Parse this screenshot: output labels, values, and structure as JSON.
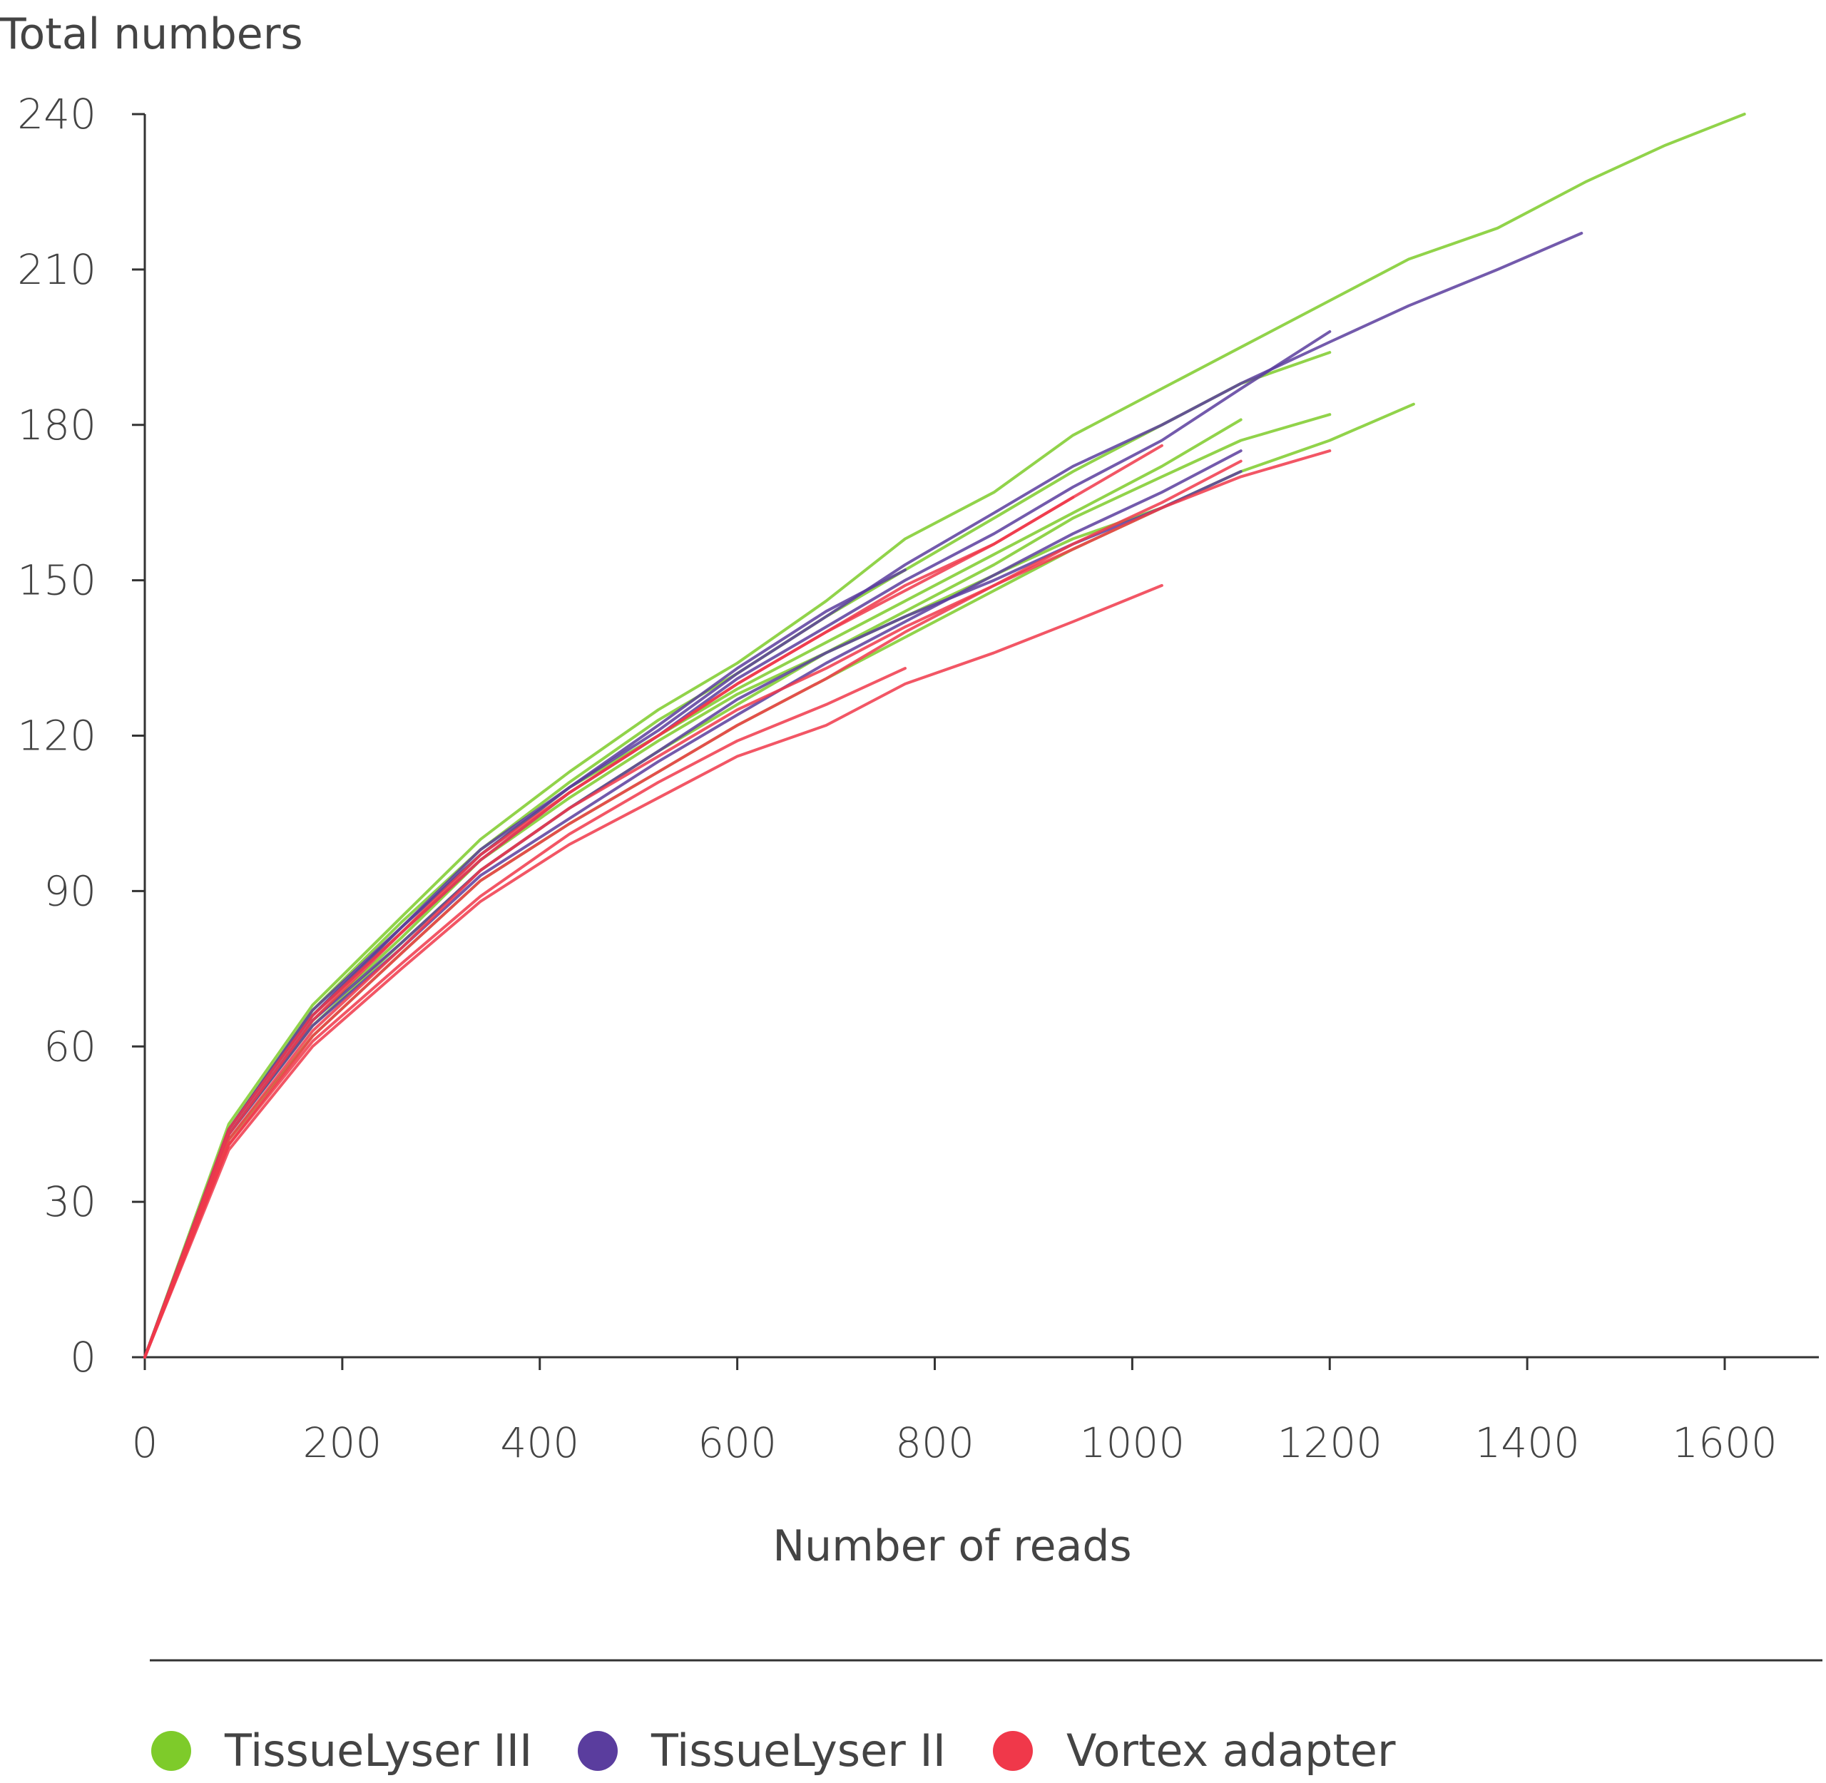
{
  "chart_data": {
    "type": "line",
    "title": "",
    "ylabel": "Total numbers",
    "xlabel": "Number of reads",
    "xlim": [
      0,
      1700
    ],
    "ylim": [
      0,
      240
    ],
    "x_ticks": [
      0,
      200,
      400,
      600,
      800,
      1000,
      1200,
      1400,
      1600
    ],
    "y_ticks": [
      0,
      30,
      60,
      90,
      120,
      150,
      180,
      210,
      240
    ],
    "grid": false,
    "legend_position": "bottom",
    "legend": [
      {
        "label": "TissueLyser III",
        "color": "#7ecb2a"
      },
      {
        "label": "TissueLyser II",
        "color": "#5a3d9e"
      },
      {
        "label": "Vortex adapter",
        "color": "#f0384a"
      }
    ],
    "series": [
      {
        "group": "TissueLyser III",
        "color": "#7ecb2a",
        "points": [
          [
            0,
            0
          ],
          [
            85,
            45
          ],
          [
            170,
            68
          ],
          [
            260,
            85
          ],
          [
            340,
            100
          ],
          [
            430,
            113
          ],
          [
            520,
            125
          ],
          [
            600,
            134
          ],
          [
            690,
            146
          ],
          [
            770,
            158
          ],
          [
            860,
            167
          ],
          [
            940,
            178
          ],
          [
            1030,
            187
          ],
          [
            1110,
            195
          ],
          [
            1200,
            204
          ],
          [
            1280,
            212
          ],
          [
            1370,
            218
          ],
          [
            1460,
            227
          ],
          [
            1540,
            234
          ],
          [
            1620,
            240
          ]
        ]
      },
      {
        "group": "TissueLyser III",
        "color": "#7ecb2a",
        "points": [
          [
            0,
            0
          ],
          [
            85,
            44
          ],
          [
            170,
            67
          ],
          [
            260,
            84
          ],
          [
            340,
            98
          ],
          [
            430,
            111
          ],
          [
            520,
            123
          ],
          [
            600,
            132
          ],
          [
            690,
            143
          ],
          [
            770,
            152
          ],
          [
            860,
            162
          ],
          [
            940,
            171
          ],
          [
            1030,
            180
          ],
          [
            1110,
            188
          ],
          [
            1200,
            194
          ]
        ]
      },
      {
        "group": "TissueLyser III",
        "color": "#7ecb2a",
        "points": [
          [
            0,
            0
          ],
          [
            85,
            43
          ],
          [
            170,
            64
          ],
          [
            260,
            80
          ],
          [
            340,
            94
          ],
          [
            430,
            106
          ],
          [
            520,
            117
          ],
          [
            600,
            126
          ],
          [
            690,
            136
          ],
          [
            770,
            144
          ],
          [
            860,
            153
          ],
          [
            940,
            162
          ],
          [
            1030,
            170
          ],
          [
            1110,
            177
          ],
          [
            1200,
            182
          ]
        ]
      },
      {
        "group": "TissueLyser III",
        "color": "#7ecb2a",
        "points": [
          [
            0,
            0
          ],
          [
            85,
            42
          ],
          [
            170,
            62
          ],
          [
            260,
            78
          ],
          [
            340,
            92
          ],
          [
            430,
            103
          ],
          [
            520,
            113
          ],
          [
            600,
            122
          ],
          [
            690,
            131
          ],
          [
            770,
            139
          ],
          [
            860,
            148
          ],
          [
            940,
            156
          ],
          [
            1030,
            164
          ],
          [
            1110,
            171
          ],
          [
            1200,
            177
          ],
          [
            1285,
            184
          ]
        ]
      },
      {
        "group": "TissueLyser III",
        "color": "#7ecb2a",
        "points": [
          [
            0,
            0
          ],
          [
            85,
            44
          ],
          [
            170,
            66
          ],
          [
            260,
            83
          ],
          [
            340,
            97
          ],
          [
            430,
            110
          ],
          [
            520,
            120
          ],
          [
            600,
            129
          ],
          [
            690,
            138
          ],
          [
            770,
            146
          ],
          [
            860,
            155
          ],
          [
            940,
            163
          ],
          [
            1030,
            172
          ],
          [
            1110,
            181
          ]
        ]
      },
      {
        "group": "TissueLyser III",
        "color": "#7ecb2a",
        "points": [
          [
            0,
            0
          ],
          [
            85,
            43
          ],
          [
            170,
            65
          ],
          [
            260,
            81
          ],
          [
            340,
            96
          ],
          [
            430,
            108
          ],
          [
            520,
            119
          ],
          [
            600,
            128
          ],
          [
            690,
            136
          ],
          [
            770,
            143
          ],
          [
            860,
            151
          ],
          [
            940,
            158
          ],
          [
            1030,
            164
          ]
        ]
      },
      {
        "group": "TissueLyser II",
        "color": "#5a3d9e",
        "points": [
          [
            0,
            0
          ],
          [
            85,
            44
          ],
          [
            170,
            67
          ],
          [
            260,
            83
          ],
          [
            340,
            97
          ],
          [
            430,
            110
          ],
          [
            520,
            121
          ],
          [
            600,
            132
          ],
          [
            690,
            143
          ],
          [
            770,
            153
          ],
          [
            860,
            163
          ],
          [
            940,
            172
          ],
          [
            1030,
            180
          ],
          [
            1110,
            188
          ],
          [
            1200,
            196
          ],
          [
            1280,
            203
          ],
          [
            1370,
            210
          ],
          [
            1455,
            217
          ]
        ]
      },
      {
        "group": "TissueLyser II",
        "color": "#5a3d9e",
        "points": [
          [
            0,
            0
          ],
          [
            85,
            44
          ],
          [
            170,
            66
          ],
          [
            260,
            82
          ],
          [
            340,
            96
          ],
          [
            430,
            109
          ],
          [
            520,
            120
          ],
          [
            600,
            131
          ],
          [
            690,
            141
          ],
          [
            770,
            150
          ],
          [
            860,
            159
          ],
          [
            940,
            168
          ],
          [
            1030,
            177
          ],
          [
            1110,
            187
          ],
          [
            1200,
            198
          ]
        ]
      },
      {
        "group": "TissueLyser II",
        "color": "#5a3d9e",
        "points": [
          [
            0,
            0
          ],
          [
            85,
            43
          ],
          [
            170,
            64
          ],
          [
            260,
            79
          ],
          [
            340,
            93
          ],
          [
            430,
            104
          ],
          [
            520,
            115
          ],
          [
            600,
            124
          ],
          [
            690,
            134
          ],
          [
            770,
            142
          ],
          [
            860,
            151
          ],
          [
            940,
            159
          ],
          [
            1030,
            167
          ],
          [
            1110,
            175
          ]
        ]
      },
      {
        "group": "TissueLyser II",
        "color": "#5a3d9e",
        "points": [
          [
            0,
            0
          ],
          [
            85,
            44
          ],
          [
            170,
            66
          ],
          [
            260,
            83
          ],
          [
            340,
            98
          ],
          [
            430,
            110
          ],
          [
            520,
            122
          ],
          [
            600,
            133
          ],
          [
            690,
            144
          ],
          [
            770,
            152
          ]
        ]
      },
      {
        "group": "TissueLyser II",
        "color": "#5a3d9e",
        "points": [
          [
            0,
            0
          ],
          [
            85,
            43
          ],
          [
            170,
            65
          ],
          [
            260,
            80
          ],
          [
            340,
            94
          ],
          [
            430,
            106
          ],
          [
            520,
            117
          ],
          [
            600,
            127
          ],
          [
            690,
            136
          ],
          [
            770,
            143
          ],
          [
            860,
            150
          ],
          [
            940,
            157
          ],
          [
            1030,
            164
          ],
          [
            1110,
            171
          ]
        ]
      },
      {
        "group": "Vortex adapter",
        "color": "#f0384a",
        "points": [
          [
            0,
            0
          ],
          [
            85,
            44
          ],
          [
            170,
            66
          ],
          [
            260,
            82
          ],
          [
            340,
            96
          ],
          [
            430,
            109
          ],
          [
            520,
            120
          ],
          [
            600,
            130
          ],
          [
            690,
            140
          ],
          [
            770,
            149
          ],
          [
            860,
            157
          ],
          [
            940,
            166
          ],
          [
            1030,
            176
          ]
        ]
      },
      {
        "group": "Vortex adapter",
        "color": "#f0384a",
        "points": [
          [
            0,
            0
          ],
          [
            85,
            41
          ],
          [
            170,
            62
          ],
          [
            260,
            78
          ],
          [
            340,
            92
          ],
          [
            430,
            103
          ],
          [
            520,
            113
          ],
          [
            600,
            122
          ],
          [
            690,
            131
          ],
          [
            770,
            140
          ],
          [
            860,
            149
          ],
          [
            940,
            156
          ],
          [
            1030,
            164
          ],
          [
            1110,
            170
          ],
          [
            1200,
            175
          ]
        ]
      },
      {
        "group": "Vortex adapter",
        "color": "#f0384a",
        "points": [
          [
            0,
            0
          ],
          [
            85,
            40
          ],
          [
            170,
            60
          ],
          [
            260,
            75
          ],
          [
            340,
            88
          ],
          [
            430,
            99
          ],
          [
            520,
            108
          ],
          [
            600,
            116
          ],
          [
            690,
            122
          ],
          [
            770,
            130
          ],
          [
            860,
            136
          ],
          [
            940,
            142
          ],
          [
            1030,
            149
          ]
        ]
      },
      {
        "group": "Vortex adapter",
        "color": "#f0384a",
        "points": [
          [
            0,
            0
          ],
          [
            85,
            41
          ],
          [
            170,
            61
          ],
          [
            260,
            76
          ],
          [
            340,
            89
          ],
          [
            430,
            101
          ],
          [
            520,
            111
          ],
          [
            600,
            119
          ],
          [
            690,
            126
          ],
          [
            770,
            133
          ]
        ]
      },
      {
        "group": "Vortex adapter",
        "color": "#f0384a",
        "points": [
          [
            0,
            0
          ],
          [
            85,
            42
          ],
          [
            170,
            63
          ],
          [
            260,
            79
          ],
          [
            340,
            94
          ],
          [
            430,
            106
          ],
          [
            520,
            116
          ],
          [
            600,
            125
          ],
          [
            690,
            133
          ],
          [
            770,
            141
          ],
          [
            860,
            149
          ],
          [
            940,
            157
          ],
          [
            1030,
            165
          ],
          [
            1110,
            173
          ]
        ]
      },
      {
        "group": "Vortex adapter",
        "color": "#f0384a",
        "points": [
          [
            0,
            0
          ],
          [
            85,
            43
          ],
          [
            170,
            65
          ],
          [
            260,
            82
          ],
          [
            340,
            97
          ],
          [
            430,
            109
          ],
          [
            520,
            120
          ],
          [
            600,
            130
          ],
          [
            690,
            140
          ],
          [
            770,
            148
          ],
          [
            860,
            157
          ],
          [
            940,
            166
          ]
        ]
      }
    ]
  }
}
